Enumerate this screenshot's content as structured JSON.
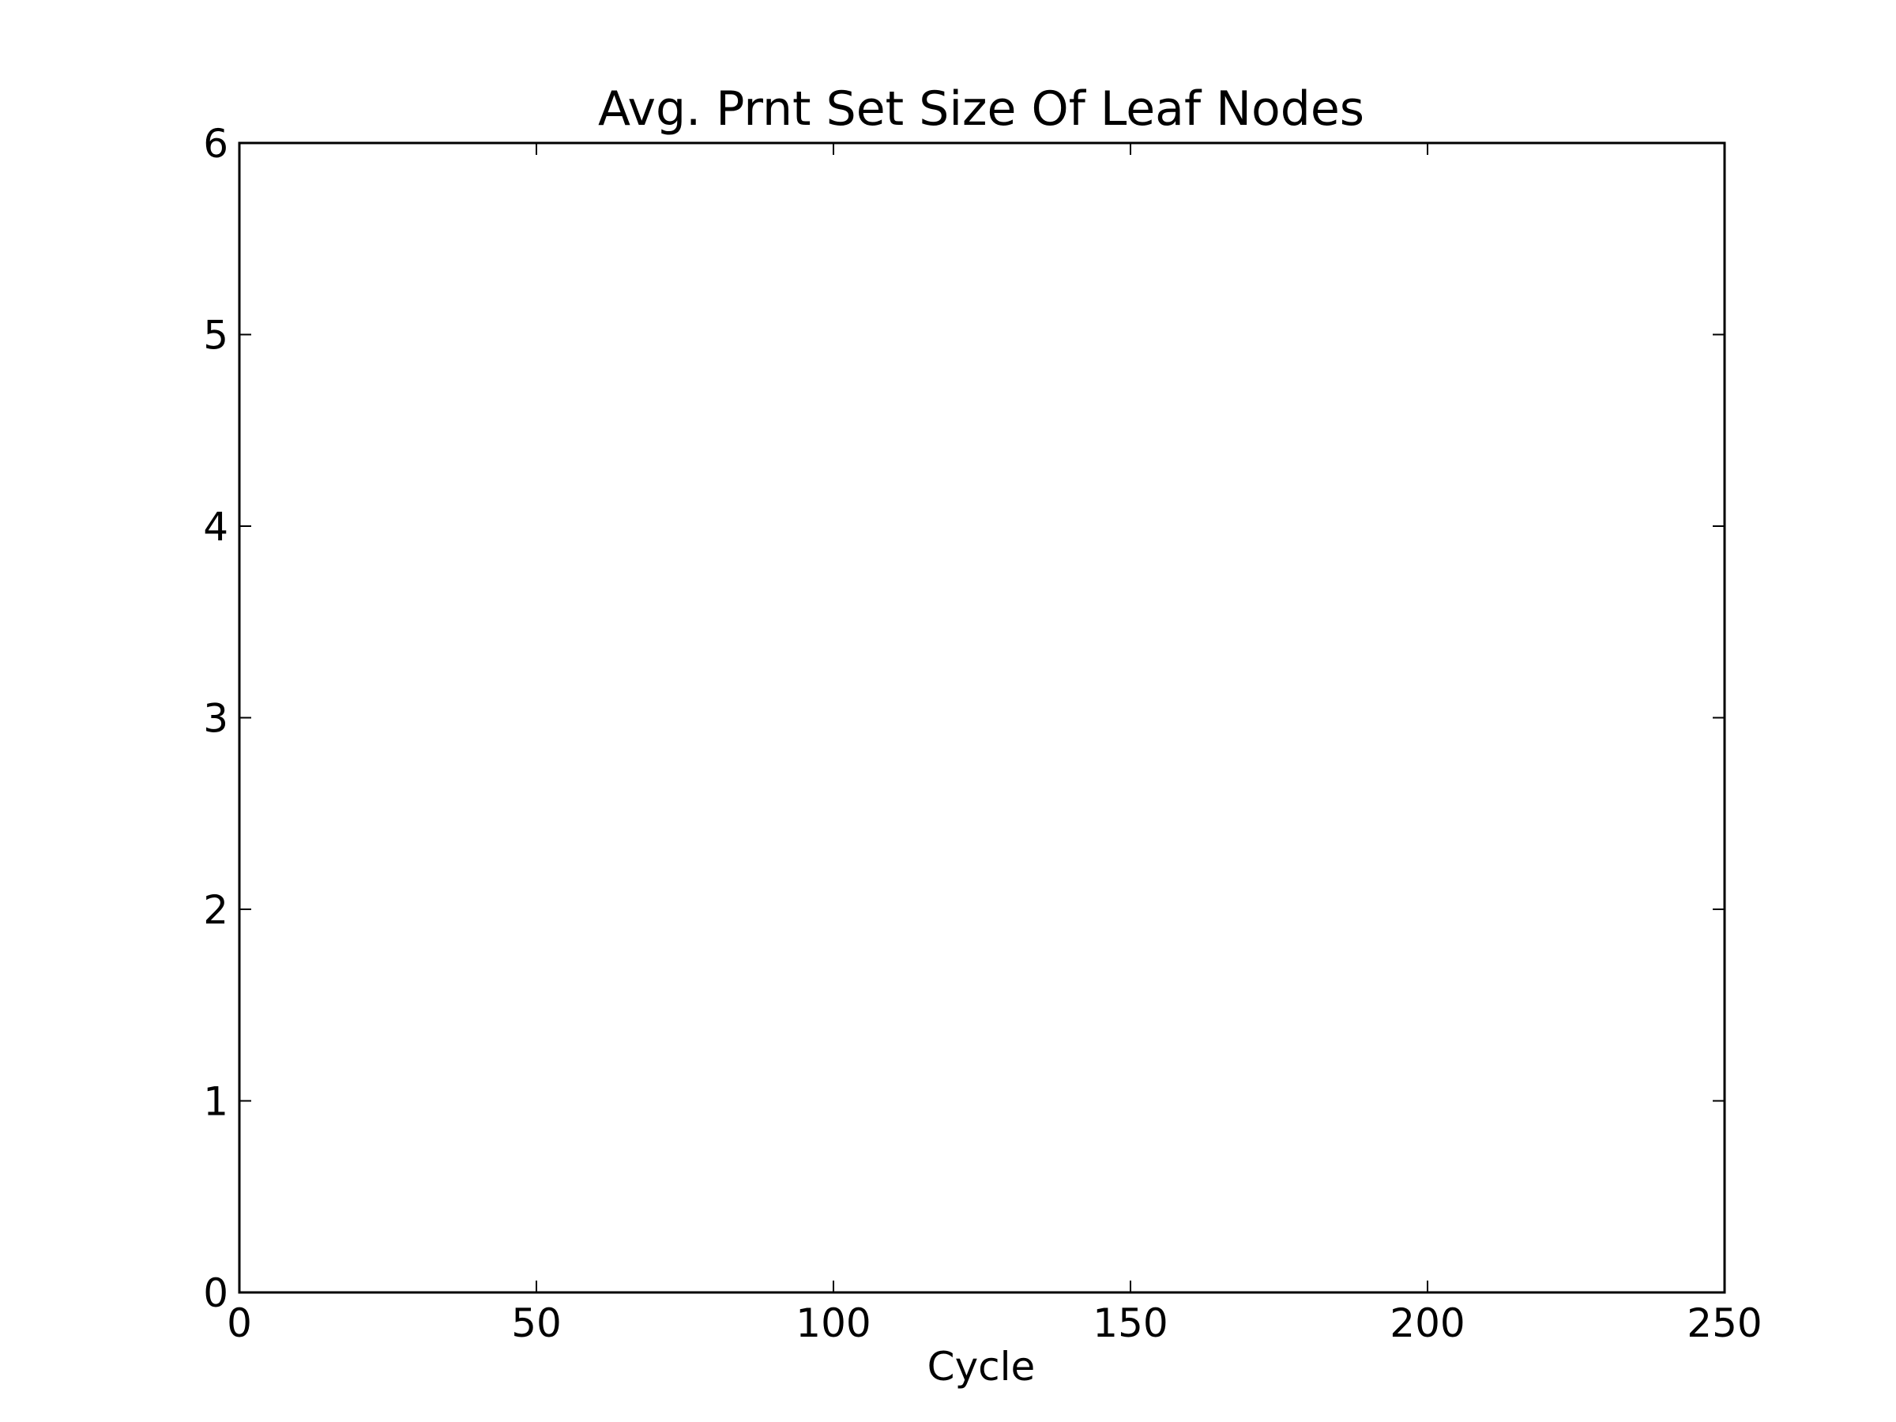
{
  "chart_data": {
    "type": "line",
    "title": "Avg. Prnt Set Size Of Leaf Nodes",
    "xlabel": "Cycle",
    "ylabel": "",
    "xlim": [
      0,
      250
    ],
    "ylim": [
      0,
      6
    ],
    "xticks": [
      0,
      50,
      100,
      150,
      200,
      250
    ],
    "yticks": [
      0,
      1,
      2,
      3,
      4,
      5,
      6
    ],
    "xtick_labels": [
      "0",
      "50",
      "100",
      "150",
      "200",
      "250"
    ],
    "ytick_labels": [
      "0",
      "1",
      "2",
      "3",
      "4",
      "5",
      "6"
    ],
    "grid": false,
    "series": []
  },
  "colors": {
    "axes": "#000000",
    "background": "#ffffff"
  }
}
